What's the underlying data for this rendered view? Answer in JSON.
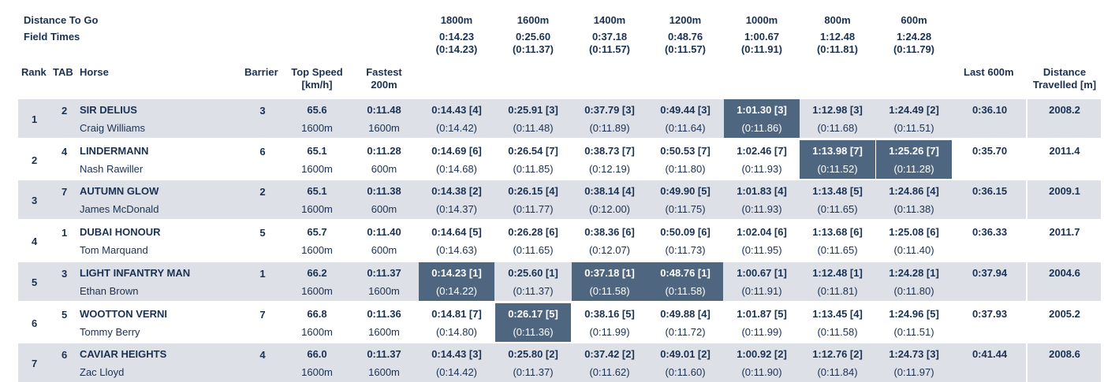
{
  "header": {
    "distance_to_go": "Distance To Go",
    "field_times": "Field Times",
    "sections": [
      {
        "dist": "1800m",
        "time": "0:14.23",
        "split": "(0:14.23)"
      },
      {
        "dist": "1600m",
        "time": "0:25.60",
        "split": "(0:11.37)"
      },
      {
        "dist": "1400m",
        "time": "0:37.18",
        "split": "(0:11.57)"
      },
      {
        "dist": "1200m",
        "time": "0:48.76",
        "split": "(0:11.57)"
      },
      {
        "dist": "1000m",
        "time": "1:00.67",
        "split": "(0:11.91)"
      },
      {
        "dist": "800m",
        "time": "1:12.48",
        "split": "(0:11.81)"
      },
      {
        "dist": "600m",
        "time": "1:24.28",
        "split": "(0:11.79)"
      }
    ]
  },
  "columns": {
    "rank": "Rank",
    "tab": "TAB",
    "horse": "Horse",
    "barrier": "Barrier",
    "top_speed_1": "Top Speed",
    "top_speed_2": "[km/h]",
    "fastest_1": "Fastest",
    "fastest_2": "200m",
    "last600": "Last 600m",
    "distance_1": "Distance",
    "distance_2": "Travelled [m]"
  },
  "rows": [
    {
      "rank": "1",
      "tab": "2",
      "horse": "SIR DELIUS",
      "jockey": "Craig Williams",
      "barrier": "3",
      "top_speed": "65.6",
      "top_speed_at": "1600m",
      "fastest": "0:11.48",
      "fastest_at": "1600m",
      "sections": [
        {
          "time": "0:14.43 [4]",
          "split": "(0:14.42)"
        },
        {
          "time": "0:25.91 [3]",
          "split": "(0:11.48)"
        },
        {
          "time": "0:37.79 [3]",
          "split": "(0:11.89)"
        },
        {
          "time": "0:49.44 [3]",
          "split": "(0:11.64)"
        },
        {
          "time": "1:01.30 [3]",
          "split": "(0:11.86)"
        },
        {
          "time": "1:12.98 [3]",
          "split": "(0:11.68)"
        },
        {
          "time": "1:24.49 [2]",
          "split": "(0:11.51)"
        }
      ],
      "last600": "0:36.10",
      "distance": "2008.2",
      "highlight": [
        4
      ]
    },
    {
      "rank": "2",
      "tab": "4",
      "horse": "LINDERMANN",
      "jockey": "Nash Rawiller",
      "barrier": "6",
      "top_speed": "65.1",
      "top_speed_at": "1600m",
      "fastest": "0:11.28",
      "fastest_at": "600m",
      "sections": [
        {
          "time": "0:14.69 [6]",
          "split": "(0:14.68)"
        },
        {
          "time": "0:26.54 [7]",
          "split": "(0:11.85)"
        },
        {
          "time": "0:38.73 [7]",
          "split": "(0:12.19)"
        },
        {
          "time": "0:50.53 [7]",
          "split": "(0:11.80)"
        },
        {
          "time": "1:02.46 [7]",
          "split": "(0:11.93)"
        },
        {
          "time": "1:13.98 [7]",
          "split": "(0:11.52)"
        },
        {
          "time": "1:25.26 [7]",
          "split": "(0:11.28)"
        }
      ],
      "last600": "0:35.70",
      "distance": "2011.4",
      "highlight": [
        5,
        6
      ]
    },
    {
      "rank": "3",
      "tab": "7",
      "horse": "AUTUMN GLOW",
      "jockey": "James McDonald",
      "barrier": "2",
      "top_speed": "65.1",
      "top_speed_at": "1600m",
      "fastest": "0:11.38",
      "fastest_at": "600m",
      "sections": [
        {
          "time": "0:14.38 [2]",
          "split": "(0:14.37)"
        },
        {
          "time": "0:26.15 [4]",
          "split": "(0:11.77)"
        },
        {
          "time": "0:38.14 [4]",
          "split": "(0:12.00)"
        },
        {
          "time": "0:49.90 [5]",
          "split": "(0:11.75)"
        },
        {
          "time": "1:01.83 [4]",
          "split": "(0:11.93)"
        },
        {
          "time": "1:13.48 [5]",
          "split": "(0:11.65)"
        },
        {
          "time": "1:24.86 [4]",
          "split": "(0:11.38)"
        }
      ],
      "last600": "0:36.15",
      "distance": "2009.1",
      "highlight": []
    },
    {
      "rank": "4",
      "tab": "1",
      "horse": "DUBAI HONOUR",
      "jockey": "Tom Marquand",
      "barrier": "5",
      "top_speed": "65.7",
      "top_speed_at": "1600m",
      "fastest": "0:11.40",
      "fastest_at": "600m",
      "sections": [
        {
          "time": "0:14.64 [5]",
          "split": "(0:14.63)"
        },
        {
          "time": "0:26.28 [6]",
          "split": "(0:11.65)"
        },
        {
          "time": "0:38.36 [6]",
          "split": "(0:12.07)"
        },
        {
          "time": "0:50.09 [6]",
          "split": "(0:11.73)"
        },
        {
          "time": "1:02.04 [6]",
          "split": "(0:11.95)"
        },
        {
          "time": "1:13.68 [6]",
          "split": "(0:11.65)"
        },
        {
          "time": "1:25.08 [6]",
          "split": "(0:11.40)"
        }
      ],
      "last600": "0:36.33",
      "distance": "2011.7",
      "highlight": []
    },
    {
      "rank": "5",
      "tab": "3",
      "horse": "LIGHT INFANTRY MAN",
      "jockey": "Ethan Brown",
      "barrier": "1",
      "top_speed": "66.2",
      "top_speed_at": "1600m",
      "fastest": "0:11.37",
      "fastest_at": "1600m",
      "sections": [
        {
          "time": "0:14.23 [1]",
          "split": "(0:14.22)"
        },
        {
          "time": "0:25.60 [1]",
          "split": "(0:11.37)"
        },
        {
          "time": "0:37.18 [1]",
          "split": "(0:11.58)"
        },
        {
          "time": "0:48.76 [1]",
          "split": "(0:11.58)"
        },
        {
          "time": "1:00.67 [1]",
          "split": "(0:11.91)"
        },
        {
          "time": "1:12.48 [1]",
          "split": "(0:11.81)"
        },
        {
          "time": "1:24.28 [1]",
          "split": "(0:11.80)"
        }
      ],
      "last600": "0:37.94",
      "distance": "2004.6",
      "highlight": [
        0,
        2,
        3
      ]
    },
    {
      "rank": "6",
      "tab": "5",
      "horse": "WOOTTON VERNI",
      "jockey": "Tommy Berry",
      "barrier": "7",
      "top_speed": "66.8",
      "top_speed_at": "1600m",
      "fastest": "0:11.36",
      "fastest_at": "1600m",
      "sections": [
        {
          "time": "0:14.81 [7]",
          "split": "(0:14.80)"
        },
        {
          "time": "0:26.17 [5]",
          "split": "(0:11.36)"
        },
        {
          "time": "0:38.16 [5]",
          "split": "(0:11.99)"
        },
        {
          "time": "0:49.88 [4]",
          "split": "(0:11.72)"
        },
        {
          "time": "1:01.87 [5]",
          "split": "(0:11.99)"
        },
        {
          "time": "1:13.45 [4]",
          "split": "(0:11.58)"
        },
        {
          "time": "1:24.96 [5]",
          "split": "(0:11.51)"
        }
      ],
      "last600": "0:37.93",
      "distance": "2005.2",
      "highlight": [
        1
      ]
    },
    {
      "rank": "7",
      "tab": "6",
      "horse": "CAVIAR HEIGHTS",
      "jockey": "Zac Lloyd",
      "barrier": "4",
      "top_speed": "66.0",
      "top_speed_at": "1600m",
      "fastest": "0:11.37",
      "fastest_at": "1600m",
      "sections": [
        {
          "time": "0:14.43 [3]",
          "split": "(0:14.42)"
        },
        {
          "time": "0:25.80 [2]",
          "split": "(0:11.37)"
        },
        {
          "time": "0:37.42 [2]",
          "split": "(0:11.62)"
        },
        {
          "time": "0:49.01 [2]",
          "split": "(0:11.60)"
        },
        {
          "time": "1:00.92 [2]",
          "split": "(0:11.90)"
        },
        {
          "time": "1:12.76 [2]",
          "split": "(0:11.84)"
        },
        {
          "time": "1:24.73 [3]",
          "split": "(0:11.97)"
        }
      ],
      "last600": "0:41.44",
      "distance": "2008.6",
      "highlight": []
    }
  ],
  "colors": {
    "text": "#1b3152",
    "row_shade": "#dde1e7",
    "highlight": "#4f6680",
    "highlight_text": "#ffffff"
  }
}
